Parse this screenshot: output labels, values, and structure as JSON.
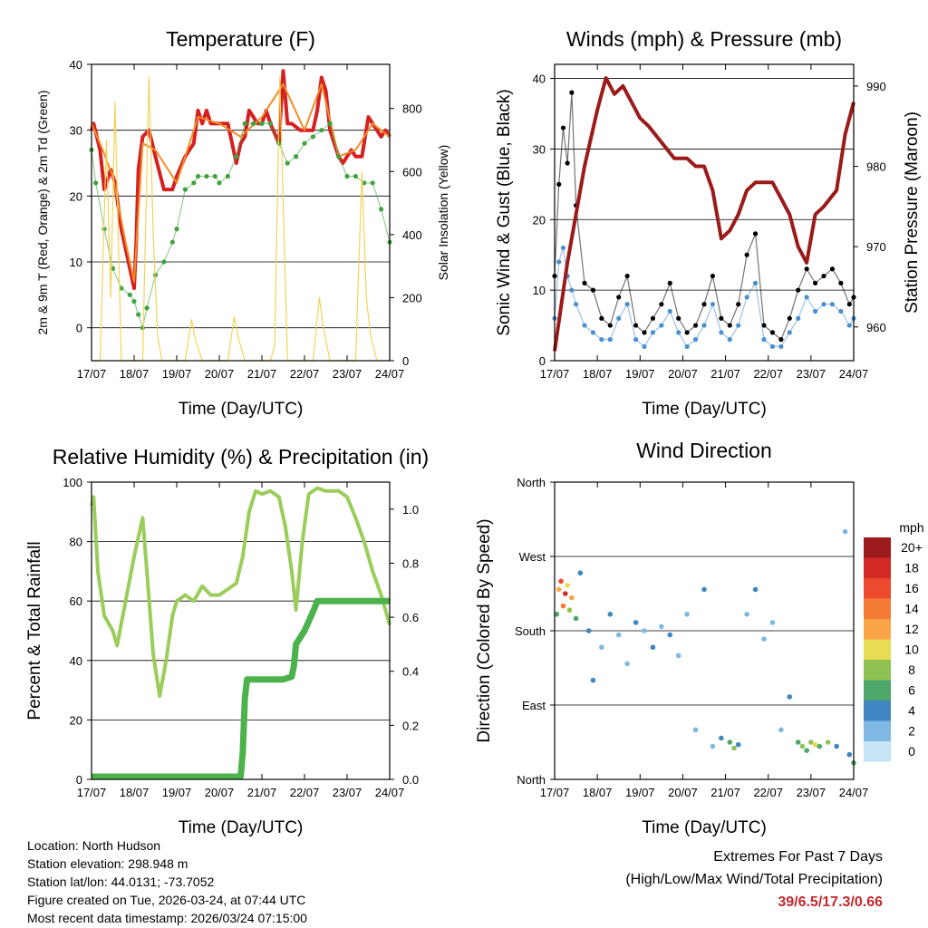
{
  "chart_data": [
    {
      "type": "line",
      "title": "Temperature (F)",
      "xlabel": "Time (Day/UTC)",
      "ylabel": "2m & 9m T (Red, Orange) & 2m Td (Green)",
      "y2label": "Solar Insolation (Yellow)",
      "ylim": [
        -5,
        40
      ],
      "y2lim": [
        0,
        940
      ],
      "yticks": [
        0,
        10,
        20,
        30,
        40
      ],
      "y2ticks": [
        0,
        200,
        400,
        600,
        800
      ],
      "grid_y": [
        0,
        10,
        20,
        30,
        40
      ],
      "x_ticks": [
        "17/07",
        "18/07",
        "19/07",
        "20/07",
        "21/07",
        "22/07",
        "23/07",
        "24/07"
      ],
      "series": [
        {
          "name": "2m T",
          "color": "#d62020",
          "style": "line",
          "x": [
            0,
            0.05,
            0.2,
            0.3,
            0.45,
            0.55,
            0.7,
            0.8,
            0.9,
            1.0,
            1.05,
            1.1,
            1.2,
            1.35,
            1.5,
            1.7,
            1.9,
            2.0,
            2.2,
            2.4,
            2.5,
            2.6,
            2.7,
            2.8,
            3.0,
            3.2,
            3.4,
            3.5,
            3.6,
            3.7,
            3.8,
            3.9,
            4.0,
            4.1,
            4.2,
            4.4,
            4.5,
            4.6,
            4.7,
            4.9,
            5.0,
            5.2,
            5.3,
            5.4,
            5.5,
            5.6,
            5.8,
            5.9,
            6.0,
            6.1,
            6.2,
            6.35,
            6.5,
            6.6,
            6.8,
            6.9,
            7.0
          ],
          "y": [
            30,
            31,
            27,
            21,
            24,
            22,
            15,
            12,
            9,
            6,
            13,
            24,
            29,
            30,
            26,
            21,
            21,
            23,
            26,
            28,
            33,
            31,
            33,
            31,
            31,
            31,
            25,
            28,
            29,
            33,
            32,
            31,
            31,
            33,
            31,
            28,
            39,
            31,
            31,
            30,
            30,
            30,
            33,
            38,
            36,
            30,
            26,
            25,
            26,
            27,
            26,
            26,
            32,
            31,
            29,
            30,
            29
          ]
        },
        {
          "name": "9m T",
          "color": "#f28c28",
          "style": "line",
          "x": [
            0,
            0.2,
            0.5,
            0.8,
            1.0,
            1.2,
            1.5,
            2.0,
            2.5,
            3.0,
            3.5,
            4.0,
            4.5,
            5.0,
            5.4,
            5.8,
            6.2,
            6.6,
            7.0
          ],
          "y": [
            31,
            28,
            23,
            13,
            7,
            28,
            27,
            22,
            32,
            31,
            29,
            32,
            37,
            30,
            37,
            26,
            27,
            31,
            29
          ]
        },
        {
          "name": "2m Td",
          "color": "#3fa33f",
          "style": "dots",
          "x": [
            0,
            0.1,
            0.3,
            0.5,
            0.7,
            0.9,
            1.0,
            1.1,
            1.2,
            1.3,
            1.5,
            1.7,
            1.9,
            2.0,
            2.2,
            2.4,
            2.5,
            2.7,
            2.9,
            3.0,
            3.2,
            3.4,
            3.6,
            3.8,
            4.0,
            4.2,
            4.4,
            4.6,
            4.8,
            5.0,
            5.2,
            5.4,
            5.6,
            5.8,
            6.0,
            6.2,
            6.4,
            6.6,
            6.8,
            7.0
          ],
          "y": [
            27,
            22,
            15,
            9,
            6,
            5,
            4,
            2,
            0,
            3,
            8,
            10,
            13,
            15,
            21,
            22,
            23,
            23,
            23,
            22,
            23,
            26,
            31,
            31,
            31,
            31,
            28,
            25,
            26,
            28,
            29,
            30,
            31,
            26,
            23,
            23,
            22,
            22,
            18,
            13
          ]
        },
        {
          "name": "Solar Insolation",
          "color": "#f3d25a",
          "style": "line",
          "axis": "y2",
          "x": [
            0,
            0.2,
            0.35,
            0.45,
            0.55,
            0.7,
            0.9,
            1.0,
            1.2,
            1.35,
            1.45,
            1.55,
            1.65,
            1.8,
            2.2,
            2.35,
            2.45,
            2.6,
            3.2,
            3.35,
            3.45,
            3.6,
            4.2,
            4.3,
            4.42,
            4.5,
            4.6,
            4.8,
            5.2,
            5.35,
            5.45,
            5.6,
            6.2,
            6.35,
            6.45,
            6.55,
            6.7
          ],
          "y": [
            0,
            0,
            700,
            200,
            820,
            0,
            0,
            0,
            0,
            900,
            400,
            80,
            0,
            0,
            0,
            130,
            60,
            0,
            0,
            140,
            70,
            0,
            0,
            50,
            900,
            500,
            0,
            0,
            0,
            200,
            100,
            0,
            0,
            600,
            200,
            80,
            0
          ]
        }
      ]
    },
    {
      "type": "scatter",
      "title": "Winds (mph) & Pressure (mb)",
      "xlabel": "Time (Day/UTC)",
      "ylabel": "Sonic Wind & Gust (Blue, Black)",
      "y2label": "Station Pressure (Maroon)",
      "ylim": [
        0,
        42
      ],
      "y2lim": [
        955.8,
        992.7
      ],
      "yticks": [
        0,
        10,
        20,
        30,
        40
      ],
      "y2ticks": [
        960,
        970,
        980,
        990
      ],
      "grid_y": [
        0,
        10,
        20,
        30,
        40
      ],
      "x_ticks": [
        "17/07",
        "18/07",
        "19/07",
        "20/07",
        "21/07",
        "22/07",
        "23/07",
        "24/07"
      ],
      "series": [
        {
          "name": "Gust",
          "color": "#000000",
          "style": "dots",
          "x": [
            0,
            0.1,
            0.2,
            0.3,
            0.4,
            0.5,
            0.7,
            0.9,
            1.1,
            1.3,
            1.5,
            1.7,
            1.9,
            2.1,
            2.3,
            2.5,
            2.7,
            2.9,
            3.1,
            3.3,
            3.5,
            3.7,
            3.9,
            4.1,
            4.3,
            4.5,
            4.7,
            4.9,
            5.1,
            5.3,
            5.5,
            5.7,
            5.9,
            6.1,
            6.3,
            6.5,
            6.7,
            6.9,
            7.0
          ],
          "y": [
            12,
            25,
            33,
            28,
            38,
            22,
            11,
            10,
            6,
            5,
            9,
            12,
            5,
            4,
            6,
            8,
            11,
            6,
            4,
            5,
            8,
            12,
            6,
            5,
            8,
            15,
            18,
            5,
            4,
            3,
            6,
            10,
            13,
            11,
            12,
            13,
            11,
            8,
            9
          ]
        },
        {
          "name": "Wind",
          "color": "#4a8fcf",
          "style": "dots",
          "x": [
            0,
            0.1,
            0.2,
            0.3,
            0.4,
            0.5,
            0.7,
            0.9,
            1.1,
            1.3,
            1.5,
            1.7,
            1.9,
            2.1,
            2.3,
            2.5,
            2.7,
            2.9,
            3.1,
            3.3,
            3.5,
            3.7,
            3.9,
            4.1,
            4.3,
            4.5,
            4.7,
            4.9,
            5.1,
            5.3,
            5.5,
            5.7,
            5.9,
            6.1,
            6.3,
            6.5,
            6.7,
            6.9,
            7.0
          ],
          "y": [
            6,
            14,
            16,
            12,
            10,
            8,
            5,
            4,
            3,
            3,
            6,
            8,
            3,
            2,
            4,
            5,
            7,
            4,
            2,
            3,
            5,
            8,
            4,
            3,
            5,
            9,
            11,
            3,
            2,
            2,
            4,
            6,
            9,
            7,
            8,
            8,
            7,
            5,
            6
          ]
        },
        {
          "name": "Station Pressure",
          "color": "#9b1b1b",
          "style": "line",
          "axis": "y2",
          "x": [
            0,
            0.3,
            0.7,
            1.0,
            1.2,
            1.4,
            1.6,
            1.8,
            2.0,
            2.2,
            2.5,
            2.8,
            3.1,
            3.3,
            3.5,
            3.7,
            3.9,
            4.1,
            4.3,
            4.5,
            4.7,
            4.9,
            5.1,
            5.3,
            5.5,
            5.7,
            5.9,
            6.1,
            6.3,
            6.6,
            6.8,
            7.0
          ],
          "y": [
            957,
            968,
            980,
            987,
            991,
            989,
            990,
            988,
            986,
            985,
            983,
            981,
            981,
            980,
            980,
            977,
            971,
            972,
            974,
            977,
            978,
            978,
            978,
            976,
            974,
            970,
            968,
            974,
            975,
            977,
            984,
            988
          ]
        }
      ]
    },
    {
      "type": "line",
      "title": "Relative Humidity (%) & Precipitation (in)",
      "xlabel": "Time (Day/UTC)",
      "ylabel": "Percent & Total Rainfall",
      "ylim": [
        0,
        100
      ],
      "y2lim": [
        0,
        1.1
      ],
      "yticks": [
        0,
        20,
        40,
        60,
        80,
        100
      ],
      "y2ticks": [
        0.0,
        0.2,
        0.4,
        0.6,
        0.8,
        1.0
      ],
      "grid_y": [
        0,
        20,
        40,
        60,
        80,
        100
      ],
      "x_ticks": [
        "17/07",
        "18/07",
        "19/07",
        "20/07",
        "21/07",
        "22/07",
        "23/07",
        "24/07"
      ],
      "series": [
        {
          "name": "Relative Humidity",
          "color": "#9acd5a",
          "style": "line",
          "x": [
            0,
            0.05,
            0.15,
            0.3,
            0.5,
            0.6,
            0.8,
            1.0,
            1.2,
            1.3,
            1.45,
            1.6,
            1.75,
            1.9,
            2.0,
            2.2,
            2.4,
            2.6,
            2.8,
            3.0,
            3.2,
            3.4,
            3.55,
            3.7,
            3.85,
            4.0,
            4.2,
            4.4,
            4.55,
            4.7,
            4.8,
            4.95,
            5.1,
            5.3,
            5.5,
            5.8,
            6.0,
            6.2,
            6.4,
            6.6,
            6.8,
            7.0
          ],
          "y": [
            92,
            95,
            70,
            55,
            50,
            45,
            60,
            75,
            88,
            70,
            42,
            28,
            40,
            55,
            60,
            62,
            60,
            65,
            62,
            62,
            64,
            66,
            75,
            90,
            97,
            96,
            97,
            95,
            85,
            70,
            57,
            80,
            96,
            98,
            97,
            97,
            95,
            88,
            80,
            70,
            62,
            52
          ]
        },
        {
          "name": "Total Precipitation",
          "color": "#4cb24c",
          "style": "line",
          "axis": "y2",
          "x": [
            0,
            1.0,
            2.0,
            3.0,
            3.5,
            3.55,
            3.6,
            3.65,
            4.0,
            4.5,
            4.7,
            4.75,
            4.8,
            5.0,
            5.2,
            5.3,
            6.0,
            7.0
          ],
          "y": [
            0.01,
            0.01,
            0.01,
            0.01,
            0.01,
            0.1,
            0.3,
            0.37,
            0.37,
            0.37,
            0.38,
            0.42,
            0.5,
            0.55,
            0.62,
            0.66,
            0.66,
            0.66
          ]
        }
      ]
    },
    {
      "type": "scatter",
      "title": "Wind Direction",
      "xlabel": "Time (Day/UTC)",
      "ylabel": "Direction (Colored By Speed)",
      "ylim": [
        0,
        360
      ],
      "ytick_labels": [
        "North",
        "East",
        "South",
        "West",
        "North"
      ],
      "yticks": [
        0,
        90,
        180,
        270,
        360
      ],
      "x_ticks": [
        "17/07",
        "18/07",
        "19/07",
        "20/07",
        "21/07",
        "22/07",
        "23/07",
        "24/07"
      ],
      "colorbar": {
        "title": "mph",
        "labels": [
          "20+",
          "18",
          "16",
          "14",
          "12",
          "10",
          "8",
          "6",
          "4",
          "2",
          "0"
        ],
        "colors": [
          "#9b1b1e",
          "#d42a25",
          "#ec4a2e",
          "#f47c35",
          "#f9a547",
          "#e8dc54",
          "#8fc253",
          "#4ea76b",
          "#3f86c2",
          "#7fb8e3",
          "#c7e4f6"
        ]
      },
      "points": [
        {
          "x": 0.05,
          "d": 200,
          "s": 6
        },
        {
          "x": 0.1,
          "d": 230,
          "s": 12
        },
        {
          "x": 0.15,
          "d": 240,
          "s": 16
        },
        {
          "x": 0.2,
          "d": 210,
          "s": 14
        },
        {
          "x": 0.25,
          "d": 225,
          "s": 18
        },
        {
          "x": 0.3,
          "d": 235,
          "s": 10
        },
        {
          "x": 0.35,
          "d": 205,
          "s": 8
        },
        {
          "x": 0.4,
          "d": 220,
          "s": 12
        },
        {
          "x": 0.5,
          "d": 195,
          "s": 6
        },
        {
          "x": 0.6,
          "d": 250,
          "s": 4
        },
        {
          "x": 0.8,
          "d": 180,
          "s": 4
        },
        {
          "x": 0.9,
          "d": 120,
          "s": 4
        },
        {
          "x": 1.1,
          "d": 160,
          "s": 2
        },
        {
          "x": 1.3,
          "d": 200,
          "s": 4
        },
        {
          "x": 1.5,
          "d": 175,
          "s": 2
        },
        {
          "x": 1.7,
          "d": 140,
          "s": 2
        },
        {
          "x": 1.9,
          "d": 190,
          "s": 4
        },
        {
          "x": 2.1,
          "d": 180,
          "s": 2
        },
        {
          "x": 2.3,
          "d": 160,
          "s": 4
        },
        {
          "x": 2.5,
          "d": 185,
          "s": 2
        },
        {
          "x": 2.7,
          "d": 175,
          "s": 4
        },
        {
          "x": 2.9,
          "d": 150,
          "s": 2
        },
        {
          "x": 3.1,
          "d": 200,
          "s": 2
        },
        {
          "x": 3.3,
          "d": 60,
          "s": 2
        },
        {
          "x": 3.5,
          "d": 230,
          "s": 4
        },
        {
          "x": 3.7,
          "d": 40,
          "s": 2
        },
        {
          "x": 3.9,
          "d": 50,
          "s": 4
        },
        {
          "x": 4.1,
          "d": 45,
          "s": 6
        },
        {
          "x": 4.2,
          "d": 38,
          "s": 8
        },
        {
          "x": 4.3,
          "d": 42,
          "s": 4
        },
        {
          "x": 4.5,
          "d": 200,
          "s": 2
        },
        {
          "x": 4.7,
          "d": 230,
          "s": 4
        },
        {
          "x": 4.9,
          "d": 170,
          "s": 2
        },
        {
          "x": 5.1,
          "d": 190,
          "s": 2
        },
        {
          "x": 5.3,
          "d": 60,
          "s": 2
        },
        {
          "x": 5.5,
          "d": 100,
          "s": 4
        },
        {
          "x": 5.7,
          "d": 45,
          "s": 6
        },
        {
          "x": 5.8,
          "d": 40,
          "s": 8
        },
        {
          "x": 5.9,
          "d": 35,
          "s": 6
        },
        {
          "x": 6.0,
          "d": 45,
          "s": 8
        },
        {
          "x": 6.1,
          "d": 42,
          "s": 10
        },
        {
          "x": 6.2,
          "d": 40,
          "s": 6
        },
        {
          "x": 6.4,
          "d": 45,
          "s": 8
        },
        {
          "x": 6.6,
          "d": 40,
          "s": 4
        },
        {
          "x": 6.8,
          "d": 300,
          "s": 2
        },
        {
          "x": 6.9,
          "d": 30,
          "s": 4
        },
        {
          "x": 7.0,
          "d": 20,
          "s": 6
        }
      ]
    }
  ],
  "info": {
    "location": "Location: North Hudson",
    "elevation": "Station elevation: 298.948 m",
    "latlon": "Station lat/lon: 44.0131; -73.7052",
    "created": "Figure created on Tue, 2026-03-24, at 07:44 UTC",
    "recent": "Most recent data timestamp: 2026/03/24 07:15:00"
  },
  "extremes": {
    "line1": "Extremes For Past 7 Days",
    "line2": "(High/Low/Max Wind/Total Precipitation)",
    "values": "39/6.5/17.3/0.66"
  }
}
